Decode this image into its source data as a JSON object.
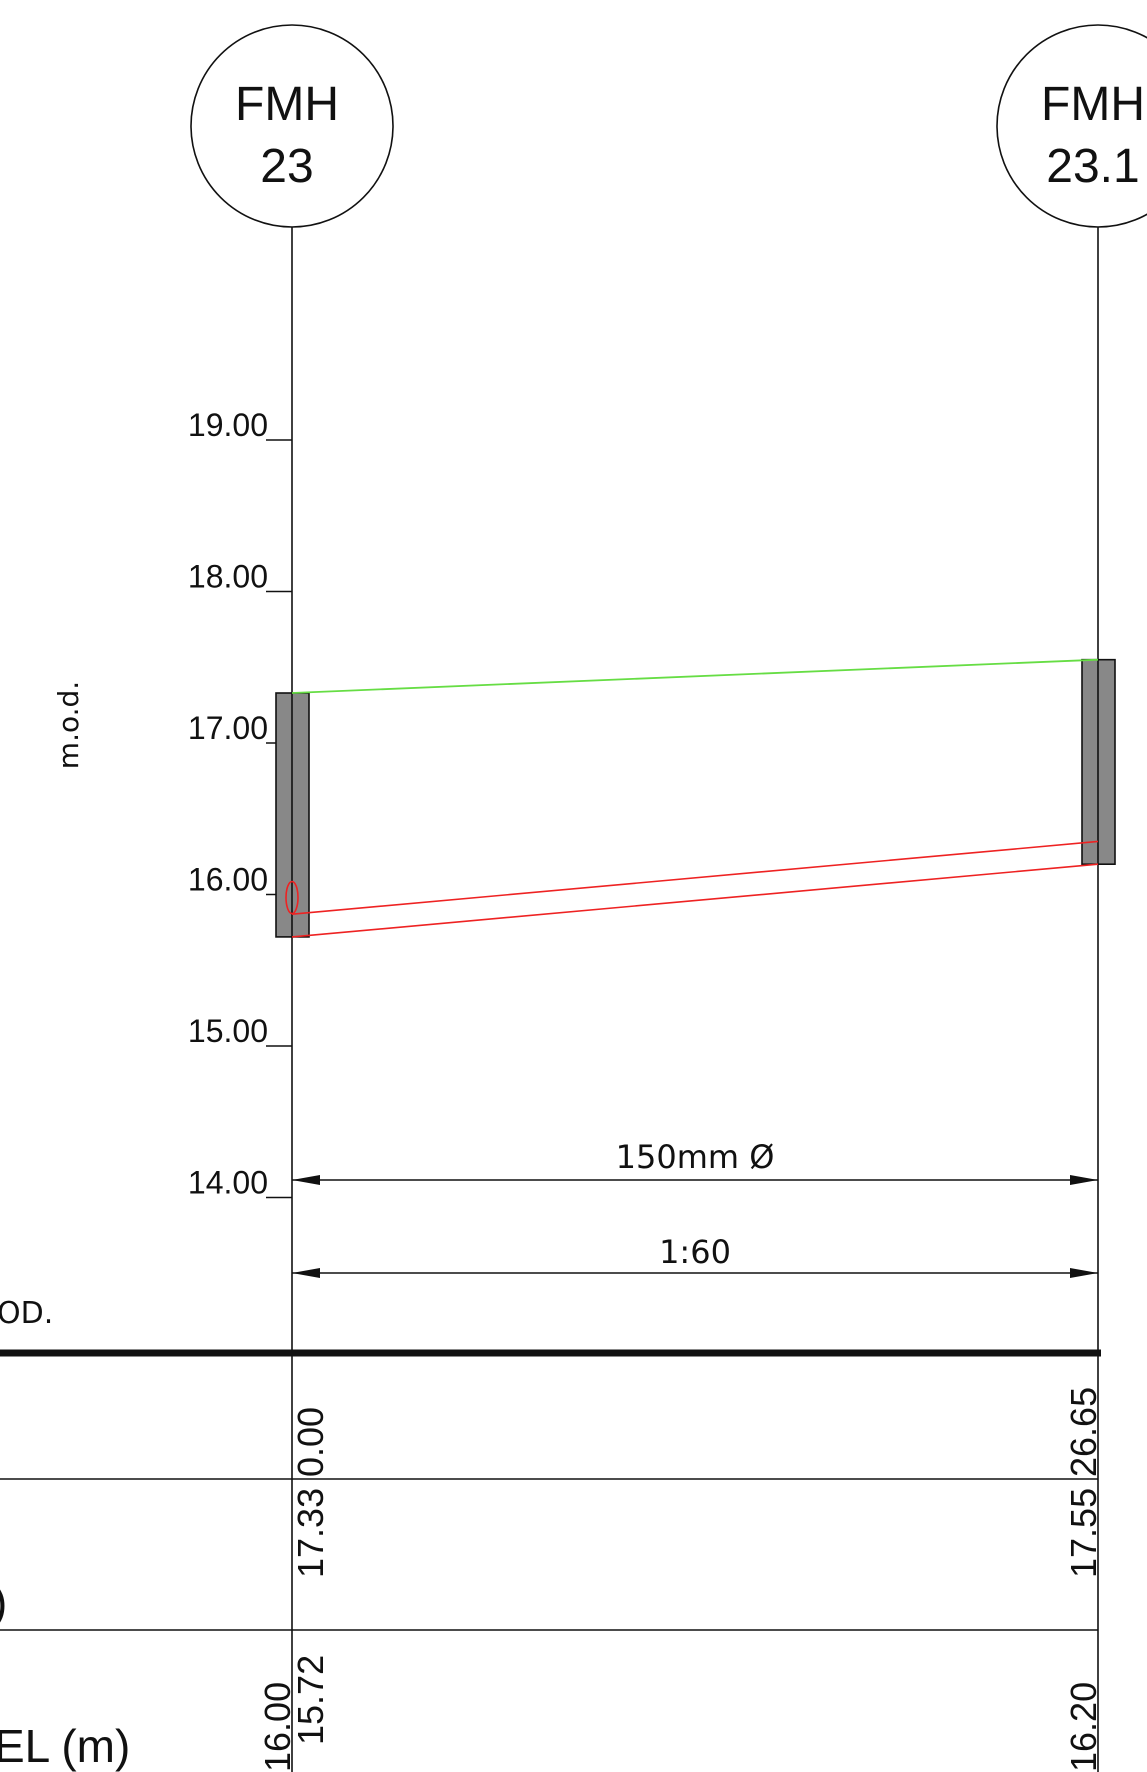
{
  "manholes": [
    {
      "line1": "FMH",
      "line2": "23"
    },
    {
      "line1": "FMH",
      "line2": "23.1"
    }
  ],
  "axis": {
    "label": "m.o.d.",
    "ticks": [
      "19.00",
      "18.00",
      "17.00",
      "16.00",
      "15.00",
      "14.00"
    ],
    "values": [
      19,
      18,
      17,
      16,
      15,
      14
    ]
  },
  "pipe": {
    "diameter_label": "150mm Ø",
    "gradient_label": "1:60",
    "ground_levels": [
      17.33,
      17.55
    ],
    "invert_levels": [
      15.72,
      16.2
    ],
    "soffit_levels": [
      15.87,
      16.35
    ],
    "colors": {
      "ground": "#66dd44",
      "pipe": "#ee2222",
      "chamber": "#888888"
    }
  },
  "datum": {
    "label_fragment": "OD."
  },
  "table": {
    "row3_fragment": ")",
    "row4_fragment": "EL (m)",
    "chainage": [
      "0.00",
      "26.65"
    ],
    "ground": [
      "17.33",
      "17.55"
    ],
    "invert_left": [
      "16.00",
      "15.72"
    ],
    "invert_right": "16.20"
  }
}
